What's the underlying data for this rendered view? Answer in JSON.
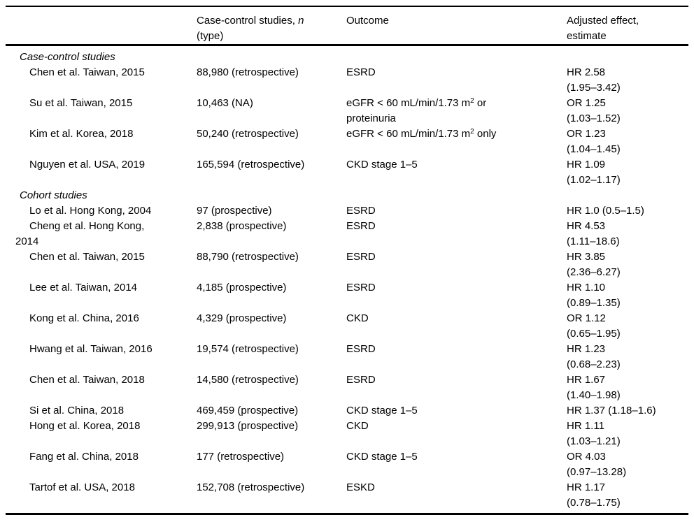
{
  "page": {
    "background_color": "#ffffff",
    "text_color": "#000000",
    "rule_color": "#000000"
  },
  "header": {
    "col1": "",
    "col2_prefix": "Case-control studies, ",
    "col2_italic": "n",
    "col2_line2": "(type)",
    "col3": "Outcome",
    "col4_line1": "Adjusted effect,",
    "col4_line2": "estimate"
  },
  "sections": [
    {
      "heading": "Case-control studies",
      "rows": [
        {
          "study": [
            "Chen et al. Taiwan, 2015"
          ],
          "n": "88,980 (retrospective)",
          "outcome": [
            "ESRD"
          ],
          "effect": [
            "HR 2.58",
            "(1.95–3.42)"
          ]
        },
        {
          "study": [
            "Su et al. Taiwan, 2015"
          ],
          "n": "10,463 (NA)",
          "outcome": [
            "eGFR < 60 mL/min/1.73 m^2 or",
            "proteinuria"
          ],
          "effect": [
            "OR 1.25",
            "(1.03–1.52)"
          ]
        },
        {
          "study": [
            "Kim et al. Korea, 2018"
          ],
          "n": "50,240 (retrospective)",
          "outcome": [
            "eGFR < 60 mL/min/1.73 m^2 only"
          ],
          "effect": [
            "OR 1.23",
            "(1.04–1.45)"
          ]
        },
        {
          "study": [
            "Nguyen et al. USA, 2019"
          ],
          "n": "165,594 (retrospective)",
          "outcome": [
            "CKD stage 1–5"
          ],
          "effect": [
            "HR 1.09",
            "(1.02–1.17)"
          ]
        }
      ]
    },
    {
      "heading": "Cohort studies",
      "rows": [
        {
          "study": [
            "Lo et al. Hong Kong, 2004"
          ],
          "n": "97 (prospective)",
          "outcome": [
            "ESRD"
          ],
          "effect": [
            "HR 1.0 (0.5–1.5)"
          ]
        },
        {
          "study": [
            "Cheng et al. Hong Kong,",
            "2014"
          ],
          "n": "2,838 (prospective)",
          "outcome": [
            "ESRD"
          ],
          "effect": [
            "HR 4.53",
            "(1.11–18.6)"
          ]
        },
        {
          "study": [
            "Chen et al. Taiwan, 2015"
          ],
          "n": "88,790 (retrospective)",
          "outcome": [
            "ESRD"
          ],
          "effect": [
            "HR 3.85",
            "(2.36–6.27)"
          ]
        },
        {
          "study": [
            "Lee et al. Taiwan, 2014"
          ],
          "n": "4,185 (prospective)",
          "outcome": [
            "ESRD"
          ],
          "effect": [
            "HR 1.10",
            "(0.89–1.35)"
          ]
        },
        {
          "study": [
            "Kong et al. China, 2016"
          ],
          "n": "4,329 (prospective)",
          "outcome": [
            "CKD"
          ],
          "effect": [
            "OR 1.12",
            "(0.65–1.95)"
          ]
        },
        {
          "study": [
            "Hwang et al. Taiwan, 2016"
          ],
          "n": "19,574 (retrospective)",
          "outcome": [
            "ESRD"
          ],
          "effect": [
            "HR 1.23",
            "(0.68–2.23)"
          ]
        },
        {
          "study": [
            "Chen et al. Taiwan, 2018"
          ],
          "n": "14,580 (retrospective)",
          "outcome": [
            "ESRD"
          ],
          "effect": [
            "HR 1.67",
            "(1.40–1.98)"
          ]
        },
        {
          "study": [
            "Si et al. China, 2018"
          ],
          "n": "469,459 (prospective)",
          "outcome": [
            "CKD stage 1–5"
          ],
          "effect": [
            "HR 1.37 (1.18–1.6)"
          ]
        },
        {
          "study": [
            "Hong et al. Korea, 2018"
          ],
          "n": "299,913 (prospective)",
          "outcome": [
            "CKD"
          ],
          "effect": [
            "HR 1.11",
            "(1.03–1.21)"
          ]
        },
        {
          "study": [
            "Fang et al. China, 2018"
          ],
          "n": "177 (retrospective)",
          "outcome": [
            "CKD stage 1–5"
          ],
          "effect": [
            "OR 4.03",
            "(0.97–13.28)"
          ]
        },
        {
          "study": [
            "Tartof et al. USA, 2018"
          ],
          "n": "152,708 (retrospective)",
          "outcome": [
            "ESKD"
          ],
          "effect": [
            "HR 1.17",
            "(0.78–1.75)"
          ]
        }
      ]
    }
  ]
}
